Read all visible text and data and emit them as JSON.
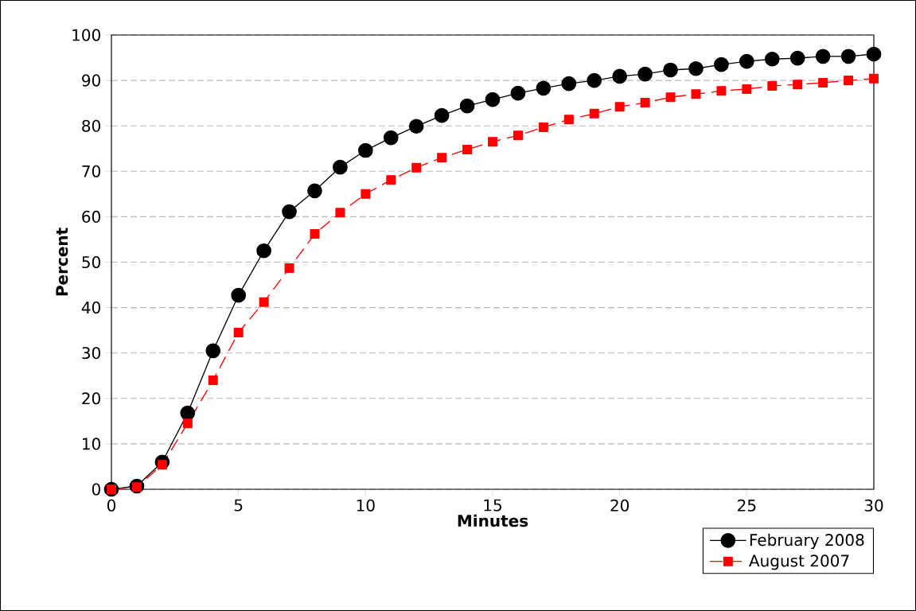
{
  "chart_data": {
    "type": "line",
    "xlabel": "Minutes",
    "ylabel": "Percent",
    "x": [
      0,
      1,
      2,
      3,
      4,
      5,
      6,
      7,
      8,
      9,
      10,
      11,
      12,
      13,
      14,
      15,
      16,
      17,
      18,
      19,
      20,
      21,
      22,
      23,
      24,
      25,
      26,
      27,
      28,
      29,
      30
    ],
    "series": [
      {
        "name": "February 2008",
        "color": "#000000",
        "marker": "circle",
        "line_style": "solid",
        "values": [
          0,
          0.7,
          6,
          16.8,
          30.5,
          42.7,
          52.5,
          61.1,
          65.7,
          70.9,
          74.6,
          77.4,
          79.9,
          82.3,
          84.4,
          85.8,
          87.2,
          88.3,
          89.3,
          90.0,
          90.9,
          91.4,
          92.3,
          92.6,
          93.5,
          94.2,
          94.7,
          94.9,
          95.3,
          95.3,
          95.8
        ]
      },
      {
        "name": "August 2007",
        "color": "#ff0000",
        "marker": "square",
        "line_style": "dashed",
        "values": [
          0,
          0.5,
          5.4,
          14.5,
          24,
          34.5,
          41.2,
          48.7,
          56.2,
          60.9,
          65,
          68.1,
          70.8,
          73,
          74.8,
          76.5,
          77.9,
          79.7,
          81.4,
          82.7,
          84.2,
          85.1,
          86.3,
          87,
          87.7,
          88.1,
          88.8,
          89.1,
          89.5,
          90,
          90.4
        ]
      }
    ],
    "xlim": [
      0,
      30
    ],
    "ylim": [
      0,
      100
    ],
    "xticks": [
      0,
      5,
      10,
      15,
      20,
      25,
      30
    ],
    "yticks": [
      0,
      10,
      20,
      30,
      40,
      50,
      60,
      70,
      80,
      90,
      100
    ],
    "grid": "y",
    "legend": "bottom right"
  }
}
